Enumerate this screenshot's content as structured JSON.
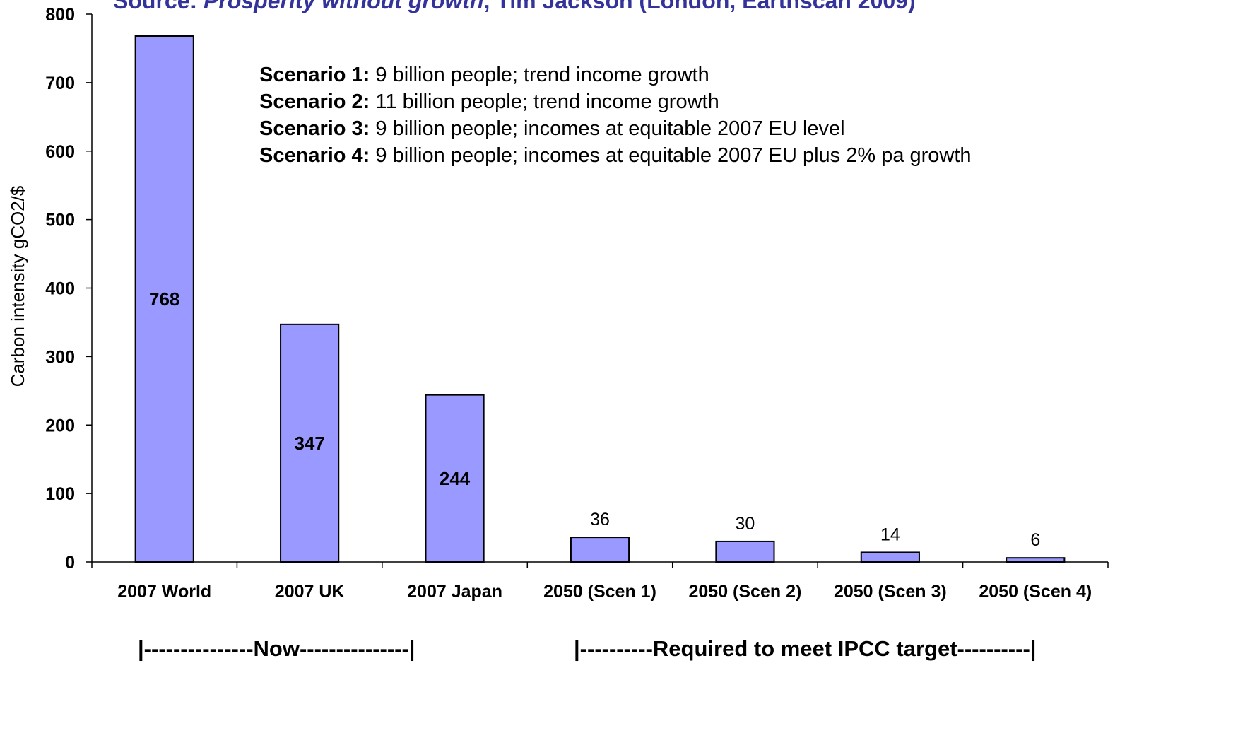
{
  "source_title": {
    "prefix": "Source: ",
    "book": "Prosperity without growth",
    "rest": ", Tim Jackson (London, Earthscan 2009)"
  },
  "notes": [
    {
      "label": "Scenario 1:",
      "text": " 9 billion people; trend income growth"
    },
    {
      "label": "Scenario 2:",
      "text": " 11 billion people; trend income growth"
    },
    {
      "label": "Scenario 3:",
      "text": " 9 billion people; incomes at equitable 2007 EU level"
    },
    {
      "label": "Scenario 4:",
      "text": " 9 billion people; incomes at equitable 2007 EU plus 2% pa growth"
    }
  ],
  "group_labels": {
    "now": "|---------------Now---------------|",
    "required": "|----------Required to meet IPCC target----------|"
  },
  "chart_data": {
    "type": "bar",
    "categories": [
      "2007 World",
      "2007 UK",
      "2007 Japan",
      "2050 (Scen 1)",
      "2050 (Scen 2)",
      "2050 (Scen 3)",
      "2050 (Scen 4)"
    ],
    "values": [
      768,
      347,
      244,
      36,
      30,
      14,
      6
    ],
    "data_labels": [
      "768",
      "347",
      "244",
      "36",
      "30",
      "14",
      "6"
    ],
    "title": "",
    "xlabel": "",
    "ylabel": "Carbon intensity gCO2/$",
    "ylim": [
      0,
      800
    ],
    "yticks": [
      0,
      100,
      200,
      300,
      400,
      500,
      600,
      700,
      800
    ],
    "grid": false,
    "legend": "none",
    "colors": {
      "bar_fill": "#9999FF",
      "bar_stroke": "#000000",
      "axis": "#000000"
    }
  }
}
